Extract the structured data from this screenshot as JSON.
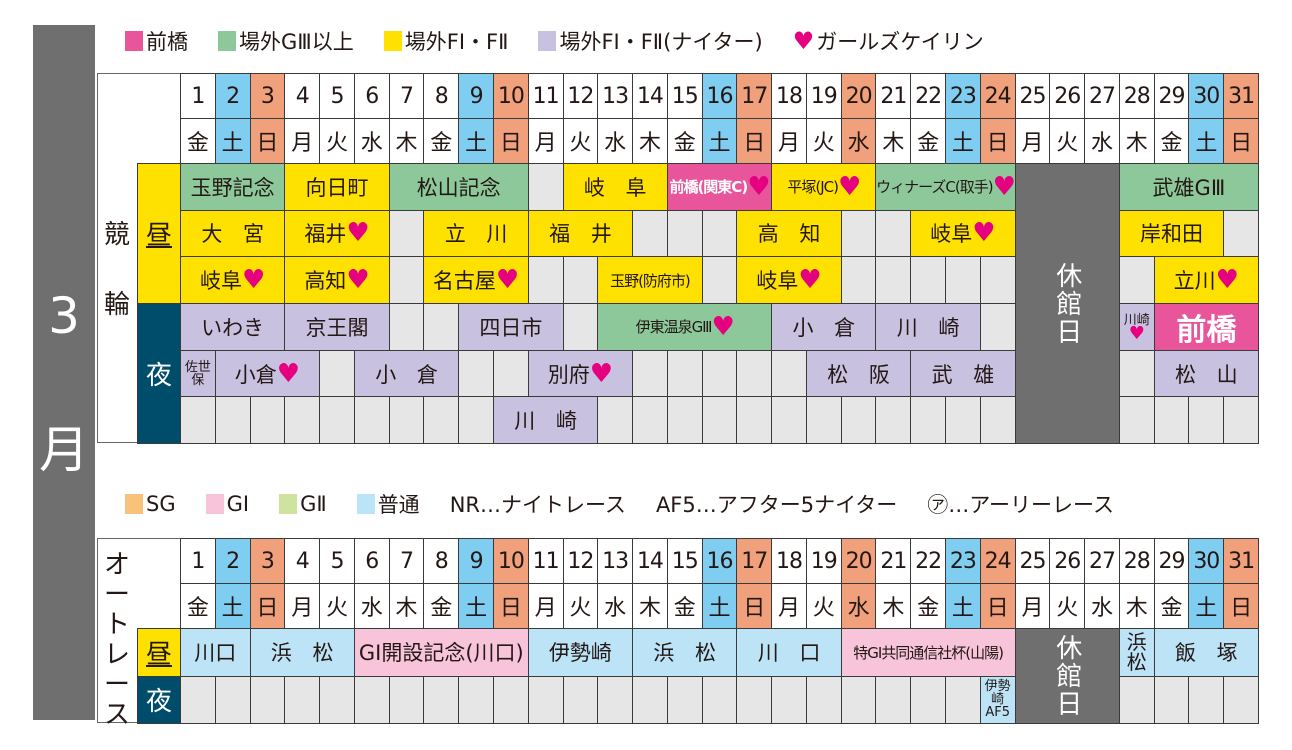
{
  "month_label": {
    "number": "3",
    "unit": "月"
  },
  "keirin_legend": [
    {
      "label": "前橋",
      "color": "#e8559a"
    },
    {
      "label": "場外GⅢ以上",
      "color": "#8dc89a"
    },
    {
      "label": "場外FⅠ・FⅡ",
      "color": "#ffe100"
    },
    {
      "label": "場外FⅠ・FⅡ(ナイター)",
      "color": "#c8c2e0"
    },
    {
      "label": "ガールズケイリン",
      "color": "#e4007f",
      "icon": "heart-icon"
    }
  ],
  "auto_legend": [
    {
      "label": "SG",
      "color": "#f9c27a"
    },
    {
      "label": "GⅠ",
      "color": "#f7c4da"
    },
    {
      "label": "GⅡ",
      "color": "#cfe3a0"
    },
    {
      "label": "普通",
      "color": "#bde3f7"
    },
    {
      "label": "NR…ナイトレース"
    },
    {
      "label": "AF5…アフター5ナイター"
    },
    {
      "label": "㋐…アーリーレース"
    }
  ],
  "colors": {
    "sat": "#7fcdf0",
    "sun": "#f0a07a",
    "yellow": "#ffe100",
    "green": "#8dc89a",
    "purple": "#c8c2e0",
    "pink": "#e8559a",
    "autoblue": "#bde3f7",
    "autopink": "#f7c4da",
    "closed": "#6f6f6f",
    "day_label": "#ffe100",
    "night_label": "#004d6b"
  },
  "days": [
    "1",
    "2",
    "3",
    "4",
    "5",
    "6",
    "7",
    "8",
    "9",
    "10",
    "11",
    "12",
    "13",
    "14",
    "15",
    "16",
    "17",
    "18",
    "19",
    "20",
    "21",
    "22",
    "23",
    "24",
    "25",
    "26",
    "27",
    "28",
    "29",
    "30",
    "31"
  ],
  "weekdays": [
    "金",
    "土",
    "日",
    "月",
    "火",
    "水",
    "木",
    "金",
    "土",
    "日",
    "月",
    "火",
    "水",
    "木",
    "金",
    "土",
    "日",
    "月",
    "火",
    "水",
    "木",
    "金",
    "土",
    "日",
    "月",
    "火",
    "水",
    "木",
    "金",
    "土",
    "日"
  ],
  "day_types": [
    "",
    "sat",
    "sun",
    "",
    "",
    "",
    "",
    "",
    "sat",
    "sun",
    "",
    "",
    "",
    "",
    "",
    "sat",
    "sun",
    "",
    "",
    "sun",
    "",
    "",
    "sat",
    "sun",
    "",
    "",
    "",
    "",
    "",
    "sat",
    "sun"
  ],
  "keirin": {
    "title": "競輪",
    "day_label": "昼",
    "night_label": "夜",
    "closed_label": "休館日",
    "closed_days": [
      25,
      27
    ],
    "rows": [
      [
        {
          "s": 1,
          "e": 3,
          "t": "玉野記念",
          "c": "green"
        },
        {
          "s": 4,
          "e": 6,
          "t": "向日町",
          "c": "yellow"
        },
        {
          "s": 7,
          "e": 10,
          "t": "松山記念",
          "c": "green"
        },
        {
          "s": 12,
          "e": 14,
          "t": "岐阜",
          "c": "yellow",
          "sp": 1
        },
        {
          "s": 15,
          "e": 17,
          "t": "前橋(関東C)",
          "c": "pink",
          "h": 1,
          "w": 1,
          "sm": 1
        },
        {
          "s": 18,
          "e": 20,
          "t": "平塚(JC)",
          "c": "yellow",
          "h": 1,
          "sm": 1
        },
        {
          "s": 21,
          "e": 24,
          "t": "ウィナーズC(取手)",
          "c": "green",
          "h": 1,
          "sm": 1
        },
        {
          "s": 28,
          "e": 31,
          "t": "武雄GⅢ",
          "c": "green"
        }
      ],
      [
        {
          "s": 1,
          "e": 3,
          "t": "大宮",
          "c": "yellow",
          "sp": 1
        },
        {
          "s": 4,
          "e": 6,
          "t": "福井",
          "c": "yellow",
          "h": 1
        },
        {
          "s": 8,
          "e": 10,
          "t": "立川",
          "c": "yellow",
          "sp": 1
        },
        {
          "s": 11,
          "e": 13,
          "t": "福井",
          "c": "yellow",
          "sp": 1
        },
        {
          "s": 17,
          "e": 19,
          "t": "高知",
          "c": "yellow",
          "sp": 1
        },
        {
          "s": 22,
          "e": 24,
          "t": "岐阜",
          "c": "yellow",
          "h": 1
        },
        {
          "s": 28,
          "e": 30,
          "t": "岸和田",
          "c": "yellow"
        }
      ],
      [
        {
          "s": 1,
          "e": 3,
          "t": "岐阜",
          "c": "yellow",
          "h": 1
        },
        {
          "s": 4,
          "e": 6,
          "t": "高知",
          "c": "yellow",
          "h": 1
        },
        {
          "s": 8,
          "e": 10,
          "t": "名古屋",
          "c": "yellow",
          "h": 1
        },
        {
          "s": 13,
          "e": 15,
          "t": "玉野(防府市)",
          "c": "yellow",
          "sm": 1
        },
        {
          "s": 17,
          "e": 19,
          "t": "岐阜",
          "c": "yellow",
          "h": 1
        },
        {
          "s": 29,
          "e": 31,
          "t": "立川",
          "c": "yellow",
          "h": 1
        }
      ],
      [
        {
          "s": 1,
          "e": 3,
          "t": "いわき",
          "c": "purple"
        },
        {
          "s": 4,
          "e": 6,
          "t": "京王閣",
          "c": "purple"
        },
        {
          "s": 9,
          "e": 11,
          "t": "四日市",
          "c": "purple"
        },
        {
          "s": 13,
          "e": 17,
          "t": "伊東温泉GⅢ",
          "c": "green",
          "h": 1,
          "sm": 1
        },
        {
          "s": 18,
          "e": 20,
          "t": "小倉",
          "c": "purple",
          "sp": 1
        },
        {
          "s": 21,
          "e": 23,
          "t": "川崎",
          "c": "purple",
          "sp": 1
        },
        {
          "s": 28,
          "e": 28,
          "t": "川崎",
          "c": "purple",
          "h": 1,
          "v": 1
        },
        {
          "s": 29,
          "e": 31,
          "t": "前橋",
          "c": "pink",
          "w": 1,
          "big": 1
        }
      ],
      [
        {
          "s": 1,
          "e": 1,
          "t": "佐世保",
          "c": "purple",
          "v": 1
        },
        {
          "s": 2,
          "e": 4,
          "t": "小倉",
          "c": "purple",
          "h": 1
        },
        {
          "s": 6,
          "e": 8,
          "t": "小倉",
          "c": "purple",
          "sp": 1
        },
        {
          "s": 11,
          "e": 13,
          "t": "別府",
          "c": "purple",
          "h": 1
        },
        {
          "s": 19,
          "e": 21,
          "t": "松阪",
          "c": "purple",
          "sp": 1
        },
        {
          "s": 22,
          "e": 24,
          "t": "武雄",
          "c": "purple",
          "sp": 1
        },
        {
          "s": 29,
          "e": 31,
          "t": "松山",
          "c": "purple",
          "sp": 1
        }
      ],
      [
        {
          "s": 10,
          "e": 12,
          "t": "川崎",
          "c": "purple",
          "sp": 1
        }
      ]
    ]
  },
  "auto": {
    "title": "オートレース",
    "day_label": "昼",
    "night_label": "夜",
    "closed_label": "休館日",
    "closed_days": [
      25,
      27
    ],
    "rows": [
      [
        {
          "s": 1,
          "e": 2,
          "t": "川口",
          "c": "autoblue"
        },
        {
          "s": 3,
          "e": 5,
          "t": "浜松",
          "c": "autoblue",
          "sp": 1
        },
        {
          "s": 6,
          "e": 10,
          "t": "GⅠ開設記念(川口)",
          "c": "autopink"
        },
        {
          "s": 11,
          "e": 13,
          "t": "伊勢崎",
          "c": "autoblue"
        },
        {
          "s": 14,
          "e": 16,
          "t": "浜松",
          "c": "autoblue",
          "sp": 1
        },
        {
          "s": 17,
          "e": 19,
          "t": "川口",
          "c": "autoblue",
          "sp": 1
        },
        {
          "s": 20,
          "e": 24,
          "t": "特GⅠ共同通信社杯(山陽)",
          "c": "autopink",
          "sm": 1
        },
        {
          "s": 28,
          "e": 28,
          "t": "浜松",
          "c": "autoblue",
          "v": 1,
          "vb": 1
        },
        {
          "s": 29,
          "e": 31,
          "t": "飯塚",
          "c": "autoblue",
          "sp": 1
        }
      ],
      [
        {
          "s": 24,
          "e": 24,
          "t": "伊勢崎AF5",
          "c": "autoblue",
          "v": 1
        }
      ]
    ]
  }
}
